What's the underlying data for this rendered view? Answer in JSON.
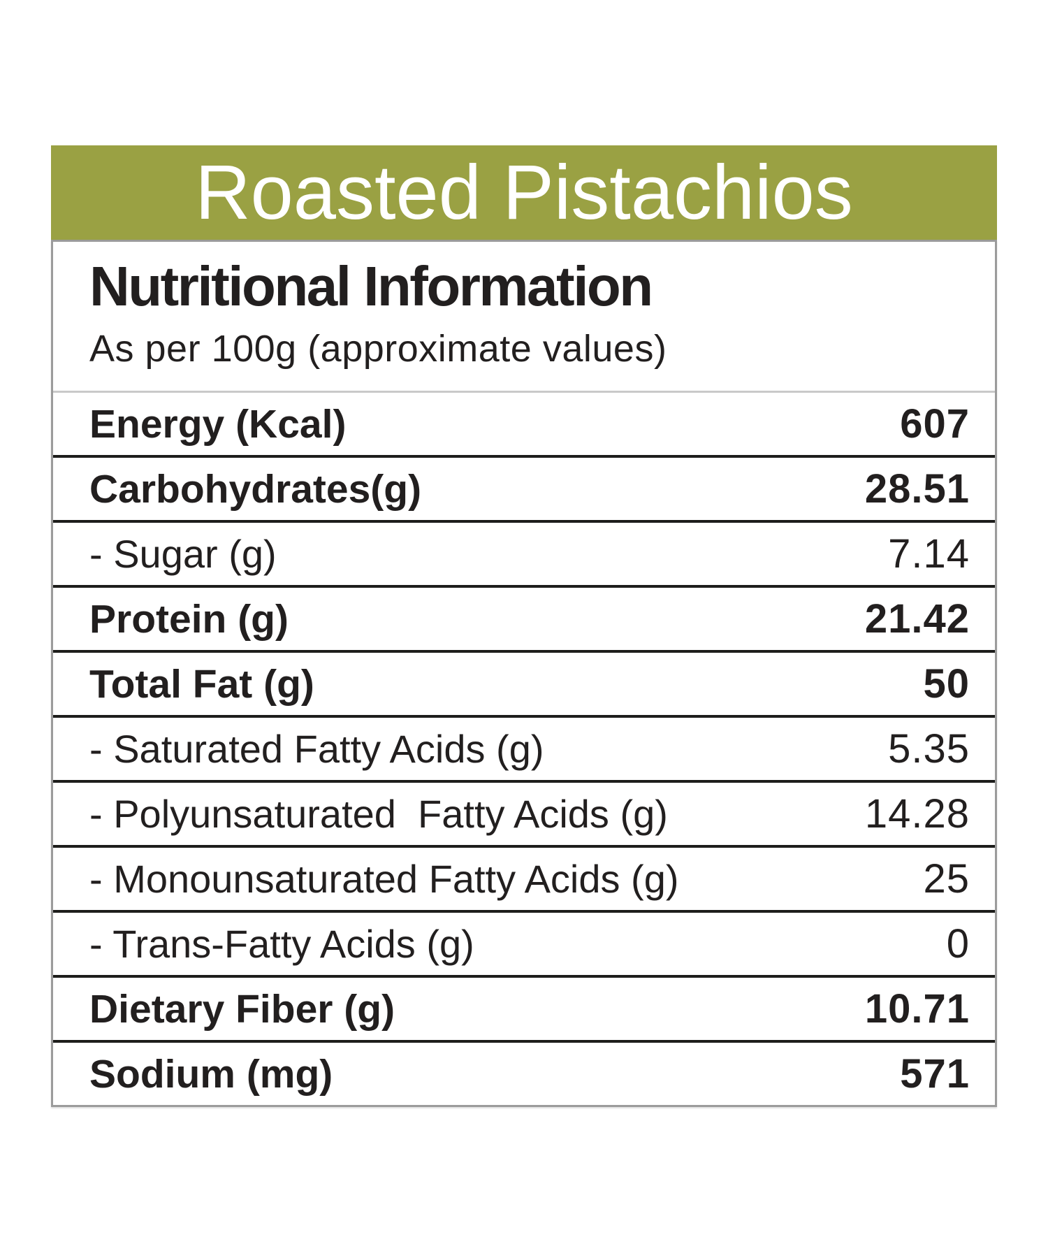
{
  "header": {
    "title": "Roasted Pistachios"
  },
  "table": {
    "heading": "Nutritional Information",
    "subheading": "As per 100g (approximate values)",
    "rows": [
      {
        "label": "Energy (Kcal)",
        "value": "607",
        "emphasis": true
      },
      {
        "label": "Carbohydrates(g)",
        "value": "28.51",
        "emphasis": true
      },
      {
        "label": "- Sugar (g)",
        "value": "7.14",
        "emphasis": false
      },
      {
        "label": "Protein (g)",
        "value": "21.42",
        "emphasis": true
      },
      {
        "label": "Total Fat (g)",
        "value": "50",
        "emphasis": true
      },
      {
        "label": "- Saturated Fatty Acids (g)",
        "value": "5.35",
        "emphasis": false
      },
      {
        "label": "- Polyunsaturated  Fatty Acids (g)",
        "value": "14.28",
        "emphasis": false
      },
      {
        "label": "- Monounsaturated Fatty Acids (g)",
        "value": "25",
        "emphasis": false
      },
      {
        "label": "- Trans-Fatty Acids (g)",
        "value": "0",
        "emphasis": false
      },
      {
        "label": "Dietary Fiber (g)",
        "value": "10.71",
        "emphasis": true
      },
      {
        "label": "Sodium (mg)",
        "value": "571",
        "emphasis": true
      }
    ]
  },
  "colors": {
    "header_bar": "#9aa143",
    "title_text": "#ffffff",
    "panel_border": "#9b9b9b",
    "header_divider": "#c9c9c9",
    "row_divider": "#1d1d1b",
    "text": "#221f1f"
  }
}
